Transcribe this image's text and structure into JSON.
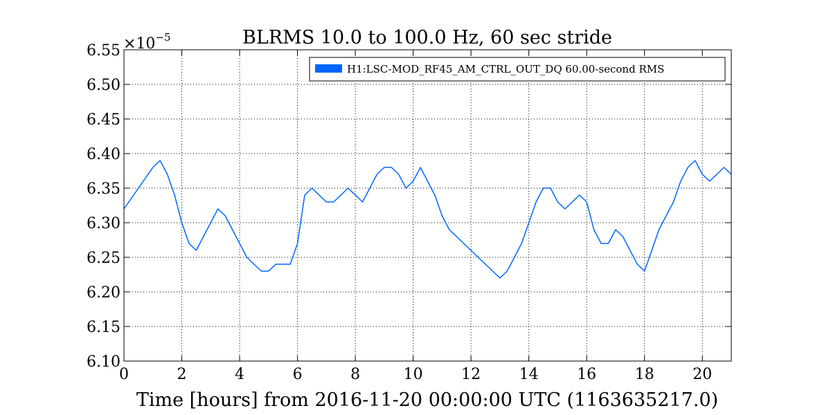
{
  "chart_data": {
    "type": "line",
    "title": "BLRMS 10.0 to 100.0 Hz, 60 sec stride",
    "xlabel": "Time [hours] from 2016-11-20 00:00:00 UTC (1163635217.0)",
    "ylabel": "",
    "xlim": [
      0,
      21
    ],
    "ylim": [
      6.1,
      6.55
    ],
    "y_multiplier": "×10",
    "y_multiplier_exp": "−5",
    "x_ticks": [
      0,
      2,
      4,
      6,
      8,
      10,
      12,
      14,
      16,
      18,
      20
    ],
    "x_tick_labels": [
      "0",
      "2",
      "4",
      "6",
      "8",
      "10",
      "12",
      "14",
      "16",
      "18",
      "20"
    ],
    "y_ticks": [
      6.1,
      6.15,
      6.2,
      6.25,
      6.3,
      6.35,
      6.4,
      6.45,
      6.5,
      6.55
    ],
    "y_tick_labels": [
      "6.10",
      "6.15",
      "6.20",
      "6.25",
      "6.30",
      "6.35",
      "6.40",
      "6.45",
      "6.50",
      "6.55"
    ],
    "grid": true,
    "legend_position": "top-right",
    "series": [
      {
        "name": "H1:LSC-MOD_RF45_AM_CTRL_OUT_DQ 60.00-second RMS",
        "color": "#0066ff",
        "x": [
          0.0,
          0.5,
          1.0,
          1.25,
          1.5,
          1.75,
          2.0,
          2.25,
          2.5,
          2.75,
          3.0,
          3.25,
          3.5,
          3.75,
          4.0,
          4.25,
          4.5,
          4.75,
          5.0,
          5.25,
          5.5,
          5.75,
          6.0,
          6.25,
          6.5,
          6.75,
          7.0,
          7.25,
          7.5,
          7.75,
          8.0,
          8.25,
          8.5,
          8.75,
          9.0,
          9.25,
          9.5,
          9.75,
          10.0,
          10.25,
          10.5,
          10.75,
          11.0,
          11.25,
          11.5,
          11.75,
          12.0,
          12.25,
          12.5,
          12.75,
          13.0,
          13.25,
          13.5,
          13.75,
          14.0,
          14.25,
          14.5,
          14.75,
          15.0,
          15.25,
          15.5,
          15.75,
          16.0,
          16.25,
          16.5,
          16.75,
          17.0,
          17.25,
          17.5,
          17.75,
          18.0,
          18.25,
          18.5,
          18.75,
          19.0,
          19.25,
          19.5,
          19.75,
          20.0,
          20.25,
          20.5,
          20.75,
          21.0
        ],
        "values": [
          6.32,
          6.35,
          6.38,
          6.39,
          6.37,
          6.34,
          6.3,
          6.27,
          6.26,
          6.28,
          6.3,
          6.32,
          6.31,
          6.29,
          6.27,
          6.25,
          6.24,
          6.23,
          6.23,
          6.24,
          6.24,
          6.24,
          6.27,
          6.34,
          6.35,
          6.34,
          6.33,
          6.33,
          6.34,
          6.35,
          6.34,
          6.33,
          6.35,
          6.37,
          6.38,
          6.38,
          6.37,
          6.35,
          6.36,
          6.38,
          6.36,
          6.34,
          6.31,
          6.29,
          6.28,
          6.27,
          6.26,
          6.25,
          6.24,
          6.23,
          6.22,
          6.23,
          6.25,
          6.27,
          6.3,
          6.33,
          6.35,
          6.35,
          6.33,
          6.32,
          6.33,
          6.34,
          6.33,
          6.29,
          6.27,
          6.27,
          6.29,
          6.28,
          6.26,
          6.24,
          6.23,
          6.26,
          6.29,
          6.31,
          6.33,
          6.36,
          6.38,
          6.39,
          6.37,
          6.36,
          6.37,
          6.38,
          6.37
        ]
      }
    ]
  }
}
